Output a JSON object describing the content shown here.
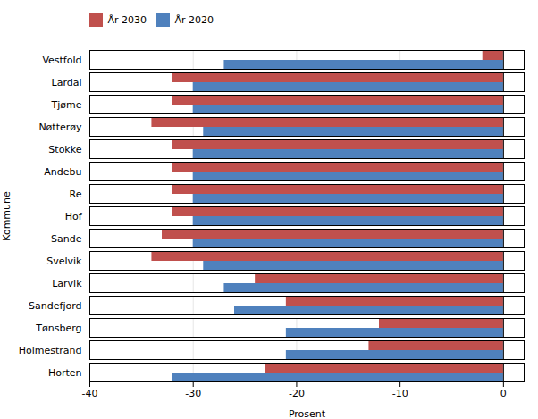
{
  "chart_data": {
    "type": "bar",
    "orientation": "horizontal",
    "categories": [
      "Vestfold",
      "Lardal",
      "Tjøme",
      "Nøtterøy",
      "Stokke",
      "Andebu",
      "Re",
      "Hof",
      "Sande",
      "Svelvik",
      "Larvik",
      "Sandefjord",
      "Tønsberg",
      "Holmestrand",
      "Horten"
    ],
    "series": [
      {
        "name": "År 2030",
        "color": "#C0504D",
        "values": [
          -2,
          -32,
          -32,
          -34,
          -32,
          -32,
          -32,
          -32,
          -33,
          -34,
          -24,
          -21,
          -12,
          -13,
          -23
        ]
      },
      {
        "name": "År 2020",
        "color": "#4F81BD",
        "values": [
          -27,
          -30,
          -30,
          -29,
          -30,
          -30,
          -30,
          -30,
          -30,
          -29,
          -27,
          -26,
          -21,
          -21,
          -32
        ]
      }
    ],
    "xlabel": "Prosent",
    "ylabel": "Kommune",
    "xlim": [
      -40,
      2
    ],
    "xticks": [
      -40,
      -30,
      -20,
      -10,
      0
    ],
    "grid": true,
    "legend": "top"
  }
}
